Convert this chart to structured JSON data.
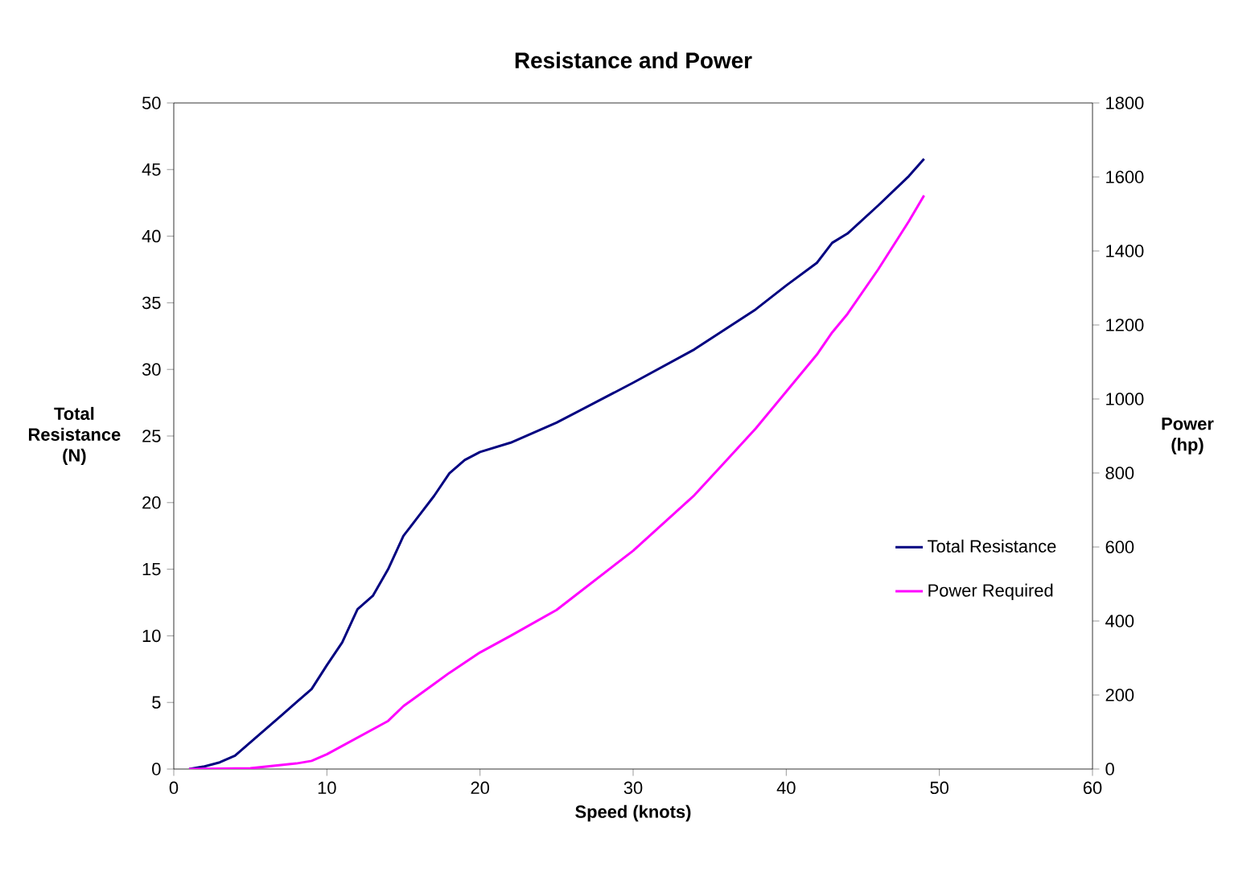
{
  "chart_data": {
    "type": "line",
    "title": "Resistance and Power",
    "xlabel": "Speed (knots)",
    "ylabel": "Total Resistance (N)",
    "y2label": "Power (hp)",
    "xlim": [
      0,
      60
    ],
    "xticks": [
      0,
      10,
      20,
      30,
      40,
      50,
      60
    ],
    "ylim": [
      0,
      50
    ],
    "yticks": [
      0,
      5,
      10,
      15,
      20,
      25,
      30,
      35,
      40,
      45,
      50
    ],
    "y2lim": [
      0,
      1800
    ],
    "y2ticks": [
      0,
      200,
      400,
      600,
      800,
      1000,
      1200,
      1400,
      1600,
      1800
    ],
    "legend": "right",
    "grid": false,
    "marker": "none",
    "line_style": "solid",
    "series": [
      {
        "name": "Total Resistance",
        "color": "#000080",
        "x": [
          1,
          2,
          3,
          4,
          5,
          6,
          7,
          8,
          9,
          10,
          11,
          12,
          13,
          14,
          15,
          16,
          17,
          18,
          19,
          20,
          22,
          25,
          30,
          34,
          36,
          38,
          40,
          42,
          43,
          44,
          46,
          48,
          49
        ],
        "values": [
          0,
          0.2,
          0.5,
          1,
          2,
          3,
          4,
          5,
          6,
          7.8,
          9.5,
          12,
          13,
          15,
          17.5,
          19,
          20.5,
          22.2,
          23.2,
          23.8,
          24.5,
          26,
          29,
          31.5,
          33,
          34.5,
          36.3,
          38,
          39.5,
          40.2,
          42.3,
          44.5,
          45.8
        ]
      },
      {
        "name": "Power Required",
        "color": "#ff00ff",
        "axis": "y2",
        "x": [
          1,
          5,
          8,
          9,
          10,
          12,
          14,
          15,
          17,
          18,
          20,
          22,
          25,
          30,
          34,
          36,
          38,
          40,
          42,
          43,
          44,
          46,
          48,
          49
        ],
        "values": [
          0,
          2,
          15,
          22,
          40,
          85,
          130,
          170,
          230,
          260,
          315,
          360,
          430,
          590,
          740,
          830,
          920,
          1020,
          1120,
          1180,
          1230,
          1350,
          1480,
          1550
        ]
      }
    ]
  }
}
